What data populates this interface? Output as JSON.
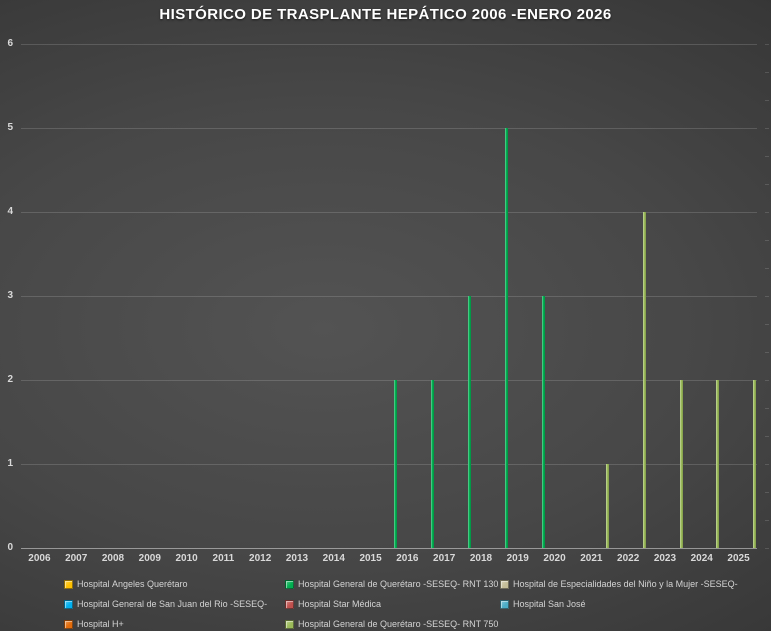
{
  "chart_data": {
    "type": "bar",
    "title": "HISTÓRICO DE TRASPLANTE HEPÁTICO 2006 -ENERO 2026",
    "categories": [
      "2006",
      "2007",
      "2008",
      "2009",
      "2010",
      "2011",
      "2012",
      "2013",
      "2014",
      "2015",
      "2016",
      "2017",
      "2018",
      "2019",
      "2020",
      "2021",
      "2022",
      "2023",
      "2024",
      "2025"
    ],
    "xlabel": "",
    "ylabel": "",
    "ylim": [
      0,
      6
    ],
    "yticks": [
      0,
      1,
      2,
      3,
      4,
      5,
      6
    ],
    "grid": true,
    "legend_position": "bottom",
    "cluster_size": 8,
    "series": [
      {
        "name": "Hospital Ángeles Querétaro",
        "color": "#FFC000",
        "values": [
          0,
          0,
          0,
          0,
          0,
          0,
          0,
          0,
          0,
          0,
          0,
          0,
          0,
          0,
          0,
          0,
          0,
          0,
          0,
          0
        ]
      },
      {
        "name": "Hospital General de Querétaro -SESEQ- RNT 130",
        "color": "#00B050",
        "values": [
          0,
          0,
          0,
          0,
          0,
          0,
          0,
          0,
          0,
          0,
          2,
          2,
          3,
          5,
          3,
          0,
          0,
          0,
          0,
          0
        ]
      },
      {
        "name": "Hospital de Especialidades del Niño y la Mujer -SESEQ-",
        "color": "#C4BD97",
        "values": [
          0,
          0,
          0,
          0,
          0,
          0,
          0,
          0,
          0,
          0,
          0,
          0,
          0,
          0,
          0,
          0,
          0,
          0,
          0,
          0
        ]
      },
      {
        "name": "Hospital General de San Juan del Rio -SESEQ-",
        "color": "#00B0F0",
        "values": [
          0,
          0,
          0,
          0,
          0,
          0,
          0,
          0,
          0,
          0,
          0,
          0,
          0,
          0,
          0,
          0,
          0,
          0,
          0,
          0
        ]
      },
      {
        "name": "Hospital Star Médica",
        "color": "#C0504D",
        "values": [
          0,
          0,
          0,
          0,
          0,
          0,
          0,
          0,
          0,
          0,
          0,
          0,
          0,
          0,
          0,
          0,
          0,
          0,
          0,
          0
        ]
      },
      {
        "name": "Hospital San José",
        "color": "#4BACC6",
        "values": [
          0,
          0,
          0,
          0,
          0,
          0,
          0,
          0,
          0,
          0,
          0,
          0,
          0,
          0,
          0,
          0,
          0,
          0,
          0,
          0
        ]
      },
      {
        "name": "Hospital H+",
        "color": "#E46C0A",
        "values": [
          0,
          0,
          0,
          0,
          0,
          0,
          0,
          0,
          0,
          0,
          0,
          0,
          0,
          0,
          0,
          0,
          0,
          0,
          0,
          0
        ]
      },
      {
        "name": "Hospital General de Querétaro -SESEQ- RNT 750",
        "color": "#9BBB59",
        "values": [
          0,
          0,
          0,
          0,
          0,
          0,
          0,
          0,
          0,
          0,
          0,
          0,
          0,
          0,
          0,
          1,
          4,
          2,
          2,
          2
        ]
      }
    ]
  }
}
